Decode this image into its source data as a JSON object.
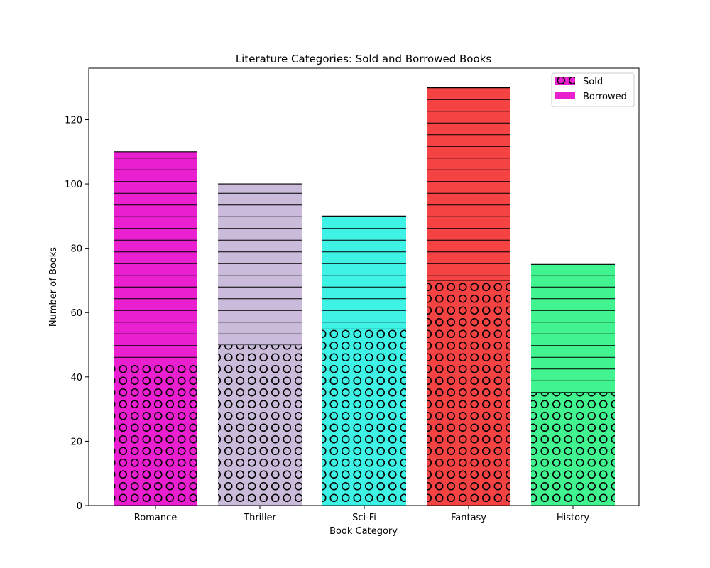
{
  "chart_data": {
    "type": "bar",
    "stacked": true,
    "title": "Literature Categories: Sold and Borrowed Books",
    "xlabel": "Book Category",
    "ylabel": "Number of Books",
    "categories": [
      "Romance",
      "Thriller",
      "Sci-Fi",
      "Fantasy",
      "History"
    ],
    "category_colors": [
      "#ea1fd0",
      "#c9bbd9",
      "#3ff2e6",
      "#f54343",
      "#42f48f"
    ],
    "series": [
      {
        "name": "Sold",
        "values": [
          45,
          50,
          55,
          70,
          35
        ],
        "pattern": "circles"
      },
      {
        "name": "Borrowed",
        "values": [
          65,
          50,
          35,
          60,
          40
        ],
        "pattern": "horizontal-lines"
      }
    ],
    "ylim": [
      0,
      136
    ],
    "yticks": [
      0,
      20,
      40,
      60,
      80,
      100,
      120
    ],
    "grid": false,
    "legend": {
      "placement": "top-right",
      "color": "#ea1fd0"
    }
  }
}
